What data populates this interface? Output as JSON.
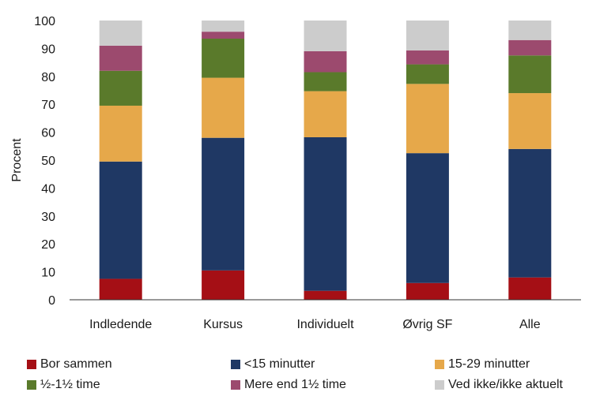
{
  "chart_data": {
    "type": "bar",
    "stacked": true,
    "ylabel": "Procent",
    "ylim": [
      0,
      100
    ],
    "yticks": [
      0,
      10,
      20,
      30,
      40,
      50,
      60,
      70,
      80,
      90,
      100
    ],
    "grid": false,
    "legend_position": "bottom",
    "categories": [
      "Indledende",
      "Kursus",
      "Individuelt",
      "Øvrig SF",
      "Alle"
    ],
    "series": [
      {
        "name": "Bor sammen",
        "color": "#a50f15",
        "values": [
          7.5,
          10.5,
          3.2,
          6.0,
          8.0
        ]
      },
      {
        "name": "<15 minutter",
        "color": "#1f3864",
        "values": [
          42.0,
          47.5,
          55.0,
          46.5,
          46.0
        ]
      },
      {
        "name": "15-29 minutter",
        "color": "#e6a84a",
        "values": [
          20.0,
          21.5,
          16.5,
          24.8,
          20.0
        ]
      },
      {
        "name": "½-1½ time",
        "color": "#5a7a2b",
        "values": [
          12.5,
          14.0,
          6.8,
          7.0,
          13.5
        ]
      },
      {
        "name": "Mere end 1½ time",
        "color": "#9c4a6e",
        "values": [
          9.0,
          2.5,
          7.5,
          5.0,
          5.5
        ]
      },
      {
        "name": "Ved ikke/ikke aktuelt",
        "color": "#cccccc",
        "values": [
          9.0,
          4.0,
          11.0,
          10.7,
          7.0
        ]
      }
    ]
  }
}
